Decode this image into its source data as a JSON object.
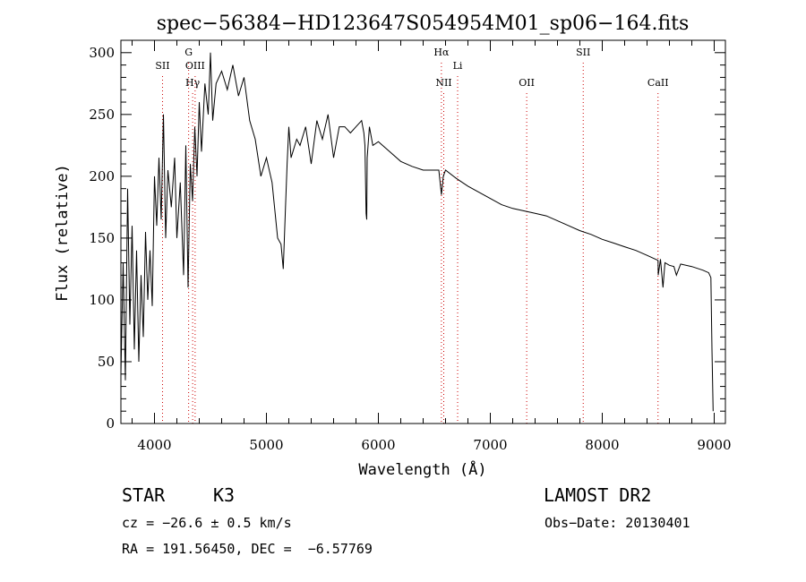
{
  "chart_data": {
    "type": "line",
    "title": "spec−56384−HD123647S054954M01_sp06−164.fits",
    "xlabel": "Wavelength (Å)",
    "ylabel": "Flux (relative)",
    "xlim": [
      3700,
      9100
    ],
    "ylim": [
      0,
      310
    ],
    "xticks": [
      4000,
      5000,
      6000,
      7000,
      8000,
      9000
    ],
    "yticks": [
      0,
      50,
      100,
      150,
      200,
      250,
      300
    ],
    "grid": false,
    "line_color": "#000000",
    "marker_color": "#cc0000",
    "series": [
      {
        "x": [
          3700,
          3720,
          3740,
          3760,
          3780,
          3800,
          3820,
          3840,
          3860,
          3880,
          3900,
          3920,
          3940,
          3960,
          3980,
          4000,
          4020,
          4040,
          4060,
          4080,
          4100,
          4120,
          4150,
          4180,
          4200,
          4230,
          4260,
          4280,
          4300,
          4320,
          4340,
          4360,
          4380,
          4400,
          4420,
          4450,
          4480,
          4500,
          4520,
          4550,
          4600,
          4650,
          4700,
          4750,
          4800,
          4850,
          4900,
          4950,
          5000,
          5050,
          5100,
          5130,
          5150,
          5170,
          5185,
          5200,
          5220,
          5270,
          5300,
          5350,
          5400,
          5450,
          5500,
          5550,
          5600,
          5650,
          5700,
          5750,
          5800,
          5850,
          5870,
          5880,
          5890,
          5896,
          5900,
          5920,
          5950,
          6000,
          6100,
          6200,
          6300,
          6400,
          6500,
          6540,
          6563,
          6580,
          6600,
          6700,
          6800,
          6900,
          7000,
          7100,
          7200,
          7300,
          7400,
          7500,
          7600,
          7700,
          7800,
          7900,
          8000,
          8100,
          8200,
          8300,
          8400,
          8498,
          8500,
          8520,
          8542,
          8560,
          8600,
          8640,
          8662,
          8700,
          8800,
          8900,
          8950,
          8970,
          8980,
          8990
        ],
        "y": [
          40,
          130,
          35,
          190,
          80,
          160,
          60,
          140,
          50,
          120,
          70,
          155,
          100,
          140,
          95,
          200,
          160,
          215,
          165,
          250,
          150,
          205,
          175,
          215,
          150,
          195,
          120,
          225,
          110,
          210,
          180,
          240,
          200,
          260,
          220,
          275,
          250,
          300,
          245,
          275,
          285,
          270,
          290,
          265,
          280,
          245,
          230,
          200,
          215,
          195,
          150,
          145,
          125,
          175,
          210,
          240,
          215,
          230,
          225,
          240,
          210,
          245,
          230,
          250,
          215,
          240,
          240,
          235,
          240,
          245,
          235,
          225,
          170,
          165,
          215,
          240,
          225,
          228,
          220,
          212,
          208,
          205,
          205,
          205,
          185,
          200,
          205,
          198,
          192,
          187,
          182,
          177,
          174,
          172,
          170,
          168,
          164,
          160,
          156,
          153,
          149,
          146,
          143,
          140,
          136,
          132,
          120,
          133,
          110,
          130,
          128,
          127,
          120,
          129,
          127,
          124,
          122,
          118,
          60,
          10
        ]
      }
    ],
    "line_markers": [
      {
        "label": "SII",
        "x": 4072,
        "row": 2
      },
      {
        "label": "G",
        "x": 4305,
        "row": 1
      },
      {
        "label": "OIII",
        "x": 4363,
        "row": 2
      },
      {
        "label": "Hγ",
        "x": 4341,
        "row": 3
      },
      {
        "label": "Hα",
        "x": 6563,
        "row": 1
      },
      {
        "label": "Li",
        "x": 6708,
        "row": 2
      },
      {
        "label": "NII",
        "x": 6584,
        "row": 3
      },
      {
        "label": "OII",
        "x": 7325,
        "row": 3
      },
      {
        "label": "SII",
        "x": 7830,
        "row": 1
      },
      {
        "label": "CaII",
        "x": 8498,
        "row": 3
      }
    ]
  },
  "info": {
    "obj_class": "STAR",
    "subclass": "K3",
    "cz": "cz = −26.6 ± 0.5 km/s",
    "coords": "RA = 191.56450, DEC =  −6.57769",
    "survey": "LAMOST DR2",
    "obs_date": "Obs−Date: 20130401"
  }
}
